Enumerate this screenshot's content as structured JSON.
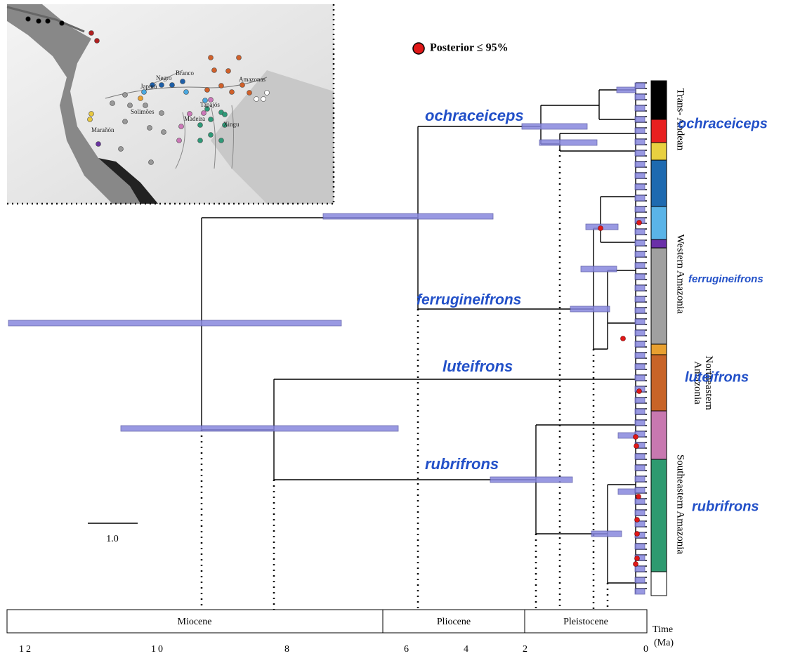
{
  "legend": {
    "label": "Posterior ≤ 95%"
  },
  "map": {
    "labels": [
      "Negro",
      "Branco",
      "Japurá",
      "Solimões",
      "Amazonas",
      "Marañón",
      "Madeira",
      "Tapajós",
      "Xingu"
    ]
  },
  "tree_labels": [
    "ochraceiceps",
    "ferrugineifrons",
    "luteifrons",
    "rubrifrons"
  ],
  "clade_labels": [
    "ochraceiceps",
    "ferrugineifrons",
    "luteifrons",
    "rubrifrons"
  ],
  "regions": [
    "Trans- Andean",
    "Western Amazonia",
    "Northeastern Amazonia",
    "Southeastern Amazonia"
  ],
  "scale_bar": "1.0",
  "epochs": [
    "Miocene",
    "Pliocene",
    "Pleistocene"
  ],
  "time_axis": {
    "label": "Time (Ma)",
    "ticks": [
      12,
      10,
      8,
      6,
      4,
      2,
      0
    ]
  }
}
